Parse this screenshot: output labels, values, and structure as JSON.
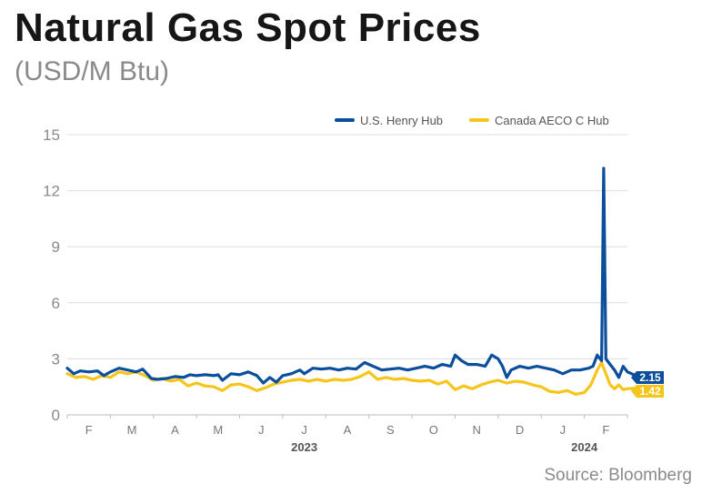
{
  "title": "Natural Gas Spot Prices",
  "subtitle": "(USD/M Btu)",
  "source": "Source: Bloomberg",
  "chart_data": {
    "type": "line",
    "title": "Natural Gas Spot Prices",
    "ylabel": "",
    "ylim": [
      0,
      15
    ],
    "yticks": [
      "0",
      "3",
      "6",
      "9",
      "12",
      "15"
    ],
    "xlim": [
      0,
      13
    ],
    "month_ticks": [
      {
        "label": "F",
        "x": 0.5
      },
      {
        "label": "M",
        "x": 1.5
      },
      {
        "label": "A",
        "x": 2.5
      },
      {
        "label": "M",
        "x": 3.5
      },
      {
        "label": "J",
        "x": 4.5
      },
      {
        "label": "J",
        "x": 5.5
      },
      {
        "label": "A",
        "x": 6.5
      },
      {
        "label": "S",
        "x": 7.5
      },
      {
        "label": "O",
        "x": 8.5
      },
      {
        "label": "N",
        "x": 9.5
      },
      {
        "label": "D",
        "x": 10.5
      },
      {
        "label": "J",
        "x": 11.5
      },
      {
        "label": "F",
        "x": 12.5
      }
    ],
    "years": [
      {
        "label": "2023",
        "x": 5.5
      },
      {
        "label": "2024",
        "x": 12.0
      }
    ],
    "grid": "horizontal",
    "legend_position": "top-right",
    "series": [
      {
        "name": "U.S. Henry Hub",
        "color": "#0B4F9C",
        "end_label": "2.15",
        "points": [
          [
            0,
            2.5
          ],
          [
            0.15,
            2.2
          ],
          [
            0.3,
            2.35
          ],
          [
            0.5,
            2.3
          ],
          [
            0.7,
            2.35
          ],
          [
            0.85,
            2.1
          ],
          [
            1.0,
            2.3
          ],
          [
            1.2,
            2.5
          ],
          [
            1.4,
            2.4
          ],
          [
            1.6,
            2.3
          ],
          [
            1.75,
            2.45
          ],
          [
            1.85,
            2.2
          ],
          [
            1.95,
            1.95
          ],
          [
            2.1,
            1.9
          ],
          [
            2.3,
            1.95
          ],
          [
            2.5,
            2.05
          ],
          [
            2.7,
            2.0
          ],
          [
            2.85,
            2.15
          ],
          [
            3.0,
            2.1
          ],
          [
            3.2,
            2.15
          ],
          [
            3.4,
            2.1
          ],
          [
            3.5,
            2.15
          ],
          [
            3.6,
            1.85
          ],
          [
            3.8,
            2.2
          ],
          [
            4.0,
            2.15
          ],
          [
            4.2,
            2.3
          ],
          [
            4.4,
            2.1
          ],
          [
            4.55,
            1.7
          ],
          [
            4.7,
            2.0
          ],
          [
            4.85,
            1.75
          ],
          [
            5.0,
            2.1
          ],
          [
            5.2,
            2.2
          ],
          [
            5.4,
            2.4
          ],
          [
            5.5,
            2.2
          ],
          [
            5.7,
            2.5
          ],
          [
            5.9,
            2.45
          ],
          [
            6.1,
            2.5
          ],
          [
            6.3,
            2.4
          ],
          [
            6.5,
            2.5
          ],
          [
            6.7,
            2.45
          ],
          [
            6.9,
            2.8
          ],
          [
            7.1,
            2.6
          ],
          [
            7.3,
            2.4
          ],
          [
            7.5,
            2.45
          ],
          [
            7.7,
            2.5
          ],
          [
            7.9,
            2.4
          ],
          [
            8.1,
            2.5
          ],
          [
            8.3,
            2.6
          ],
          [
            8.5,
            2.5
          ],
          [
            8.7,
            2.7
          ],
          [
            8.9,
            2.6
          ],
          [
            9.0,
            3.2
          ],
          [
            9.15,
            2.9
          ],
          [
            9.3,
            2.7
          ],
          [
            9.5,
            2.7
          ],
          [
            9.7,
            2.6
          ],
          [
            9.85,
            3.2
          ],
          [
            10.0,
            3.0
          ],
          [
            10.1,
            2.6
          ],
          [
            10.2,
            2.0
          ],
          [
            10.3,
            2.4
          ],
          [
            10.5,
            2.6
          ],
          [
            10.7,
            2.5
          ],
          [
            10.9,
            2.6
          ],
          [
            11.1,
            2.5
          ],
          [
            11.3,
            2.4
          ],
          [
            11.5,
            2.2
          ],
          [
            11.7,
            2.4
          ],
          [
            11.9,
            2.4
          ],
          [
            12.1,
            2.5
          ],
          [
            12.2,
            2.6
          ],
          [
            12.3,
            3.2
          ],
          [
            12.4,
            2.9
          ],
          [
            12.45,
            13.2
          ],
          [
            12.5,
            3.0
          ],
          [
            12.6,
            2.7
          ],
          [
            12.7,
            2.4
          ],
          [
            12.8,
            2.0
          ],
          [
            12.9,
            2.6
          ],
          [
            13.0,
            2.3
          ],
          [
            13.15,
            2.15
          ]
        ]
      },
      {
        "name": "Canada AECO C Hub",
        "color": "#F6C51B",
        "end_label": "1.42",
        "points": [
          [
            0,
            2.2
          ],
          [
            0.2,
            2.0
          ],
          [
            0.4,
            2.05
          ],
          [
            0.6,
            1.9
          ],
          [
            0.8,
            2.1
          ],
          [
            1.0,
            2.0
          ],
          [
            1.2,
            2.3
          ],
          [
            1.4,
            2.2
          ],
          [
            1.6,
            2.3
          ],
          [
            1.8,
            2.1
          ],
          [
            2.0,
            1.85
          ],
          [
            2.2,
            1.95
          ],
          [
            2.4,
            1.8
          ],
          [
            2.6,
            1.9
          ],
          [
            2.8,
            1.55
          ],
          [
            3.0,
            1.7
          ],
          [
            3.2,
            1.55
          ],
          [
            3.4,
            1.5
          ],
          [
            3.6,
            1.3
          ],
          [
            3.8,
            1.6
          ],
          [
            4.0,
            1.65
          ],
          [
            4.2,
            1.5
          ],
          [
            4.4,
            1.3
          ],
          [
            4.6,
            1.45
          ],
          [
            4.8,
            1.65
          ],
          [
            5.0,
            1.75
          ],
          [
            5.2,
            1.85
          ],
          [
            5.4,
            1.9
          ],
          [
            5.6,
            1.8
          ],
          [
            5.8,
            1.9
          ],
          [
            6.0,
            1.8
          ],
          [
            6.2,
            1.9
          ],
          [
            6.4,
            1.85
          ],
          [
            6.6,
            1.9
          ],
          [
            6.8,
            2.05
          ],
          [
            7.0,
            2.3
          ],
          [
            7.2,
            1.9
          ],
          [
            7.4,
            2.0
          ],
          [
            7.6,
            1.9
          ],
          [
            7.8,
            1.95
          ],
          [
            8.0,
            1.85
          ],
          [
            8.2,
            1.8
          ],
          [
            8.4,
            1.85
          ],
          [
            8.6,
            1.65
          ],
          [
            8.8,
            1.8
          ],
          [
            9.0,
            1.35
          ],
          [
            9.2,
            1.55
          ],
          [
            9.4,
            1.4
          ],
          [
            9.6,
            1.6
          ],
          [
            9.8,
            1.75
          ],
          [
            10.0,
            1.85
          ],
          [
            10.2,
            1.7
          ],
          [
            10.4,
            1.8
          ],
          [
            10.6,
            1.75
          ],
          [
            10.8,
            1.6
          ],
          [
            11.0,
            1.5
          ],
          [
            11.2,
            1.25
          ],
          [
            11.4,
            1.2
          ],
          [
            11.6,
            1.3
          ],
          [
            11.8,
            1.1
          ],
          [
            12.0,
            1.2
          ],
          [
            12.15,
            1.6
          ],
          [
            12.3,
            2.4
          ],
          [
            12.4,
            2.8
          ],
          [
            12.5,
            2.2
          ],
          [
            12.6,
            1.6
          ],
          [
            12.7,
            1.4
          ],
          [
            12.8,
            1.6
          ],
          [
            12.9,
            1.35
          ],
          [
            13.0,
            1.4
          ],
          [
            13.15,
            1.42
          ]
        ]
      }
    ]
  }
}
